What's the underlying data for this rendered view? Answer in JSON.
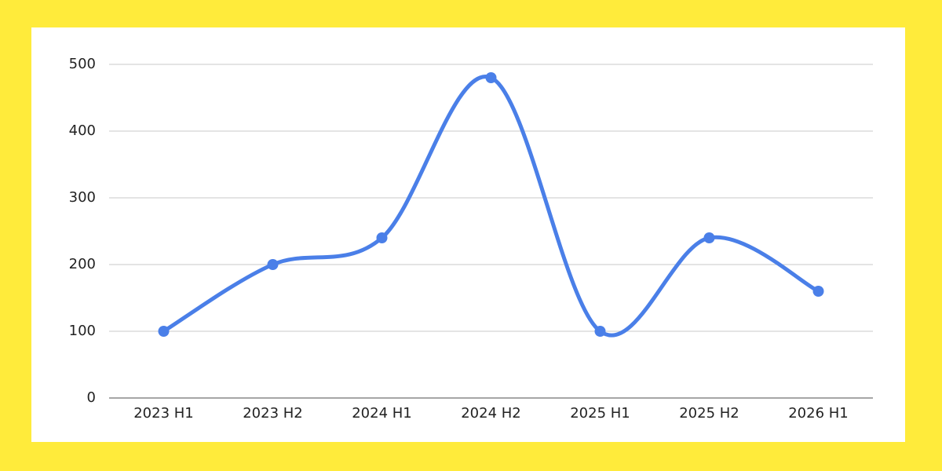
{
  "chart_data": {
    "type": "line",
    "categories": [
      "2023 H1",
      "2023 H2",
      "2024 H1",
      "2024 H2",
      "2025 H1",
      "2025 H2",
      "2026 H1"
    ],
    "values": [
      100,
      200,
      240,
      480,
      100,
      240,
      160
    ],
    "color": "#4a7fe8",
    "smooth": true,
    "ylim": [
      0,
      500
    ],
    "yticks": [
      0,
      100,
      200,
      300,
      400,
      500
    ],
    "grid": true
  }
}
